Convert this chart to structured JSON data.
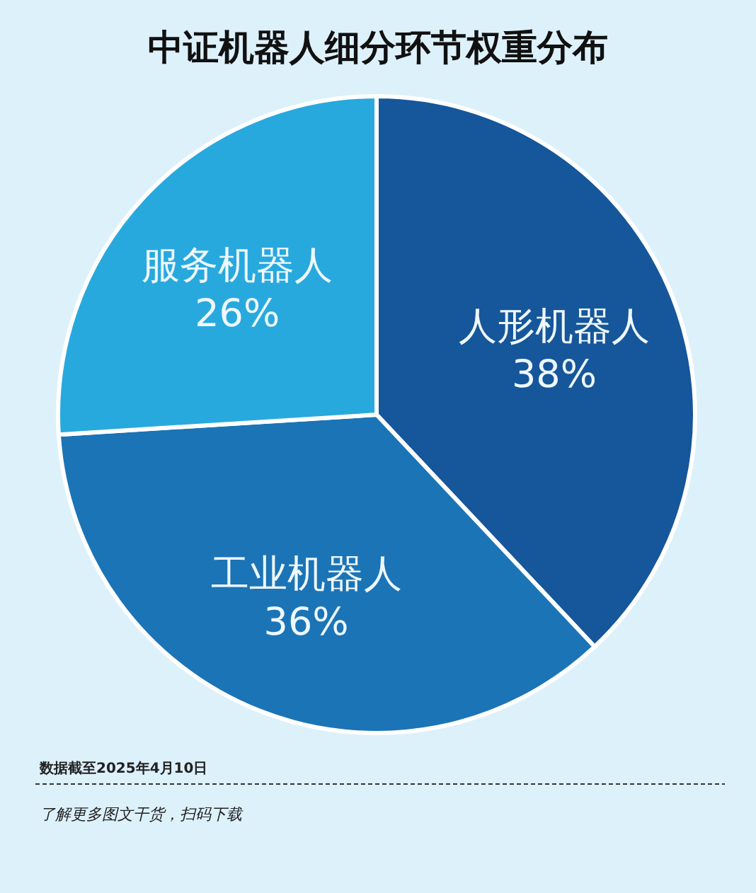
{
  "chart_data": {
    "type": "pie",
    "title": "中证机器人细分环节权重分布",
    "categories": [
      "人形机器人",
      "工业机器人",
      "服务机器人"
    ],
    "values": [
      38,
      36,
      26
    ],
    "value_labels": [
      "38%",
      "36%",
      "26%"
    ],
    "colors": [
      "#16569a",
      "#1b74b6",
      "#28a9de"
    ],
    "annotations": [
      "数据截至2025年4月10日",
      "了解更多图文干货，扫码下载"
    ]
  }
}
